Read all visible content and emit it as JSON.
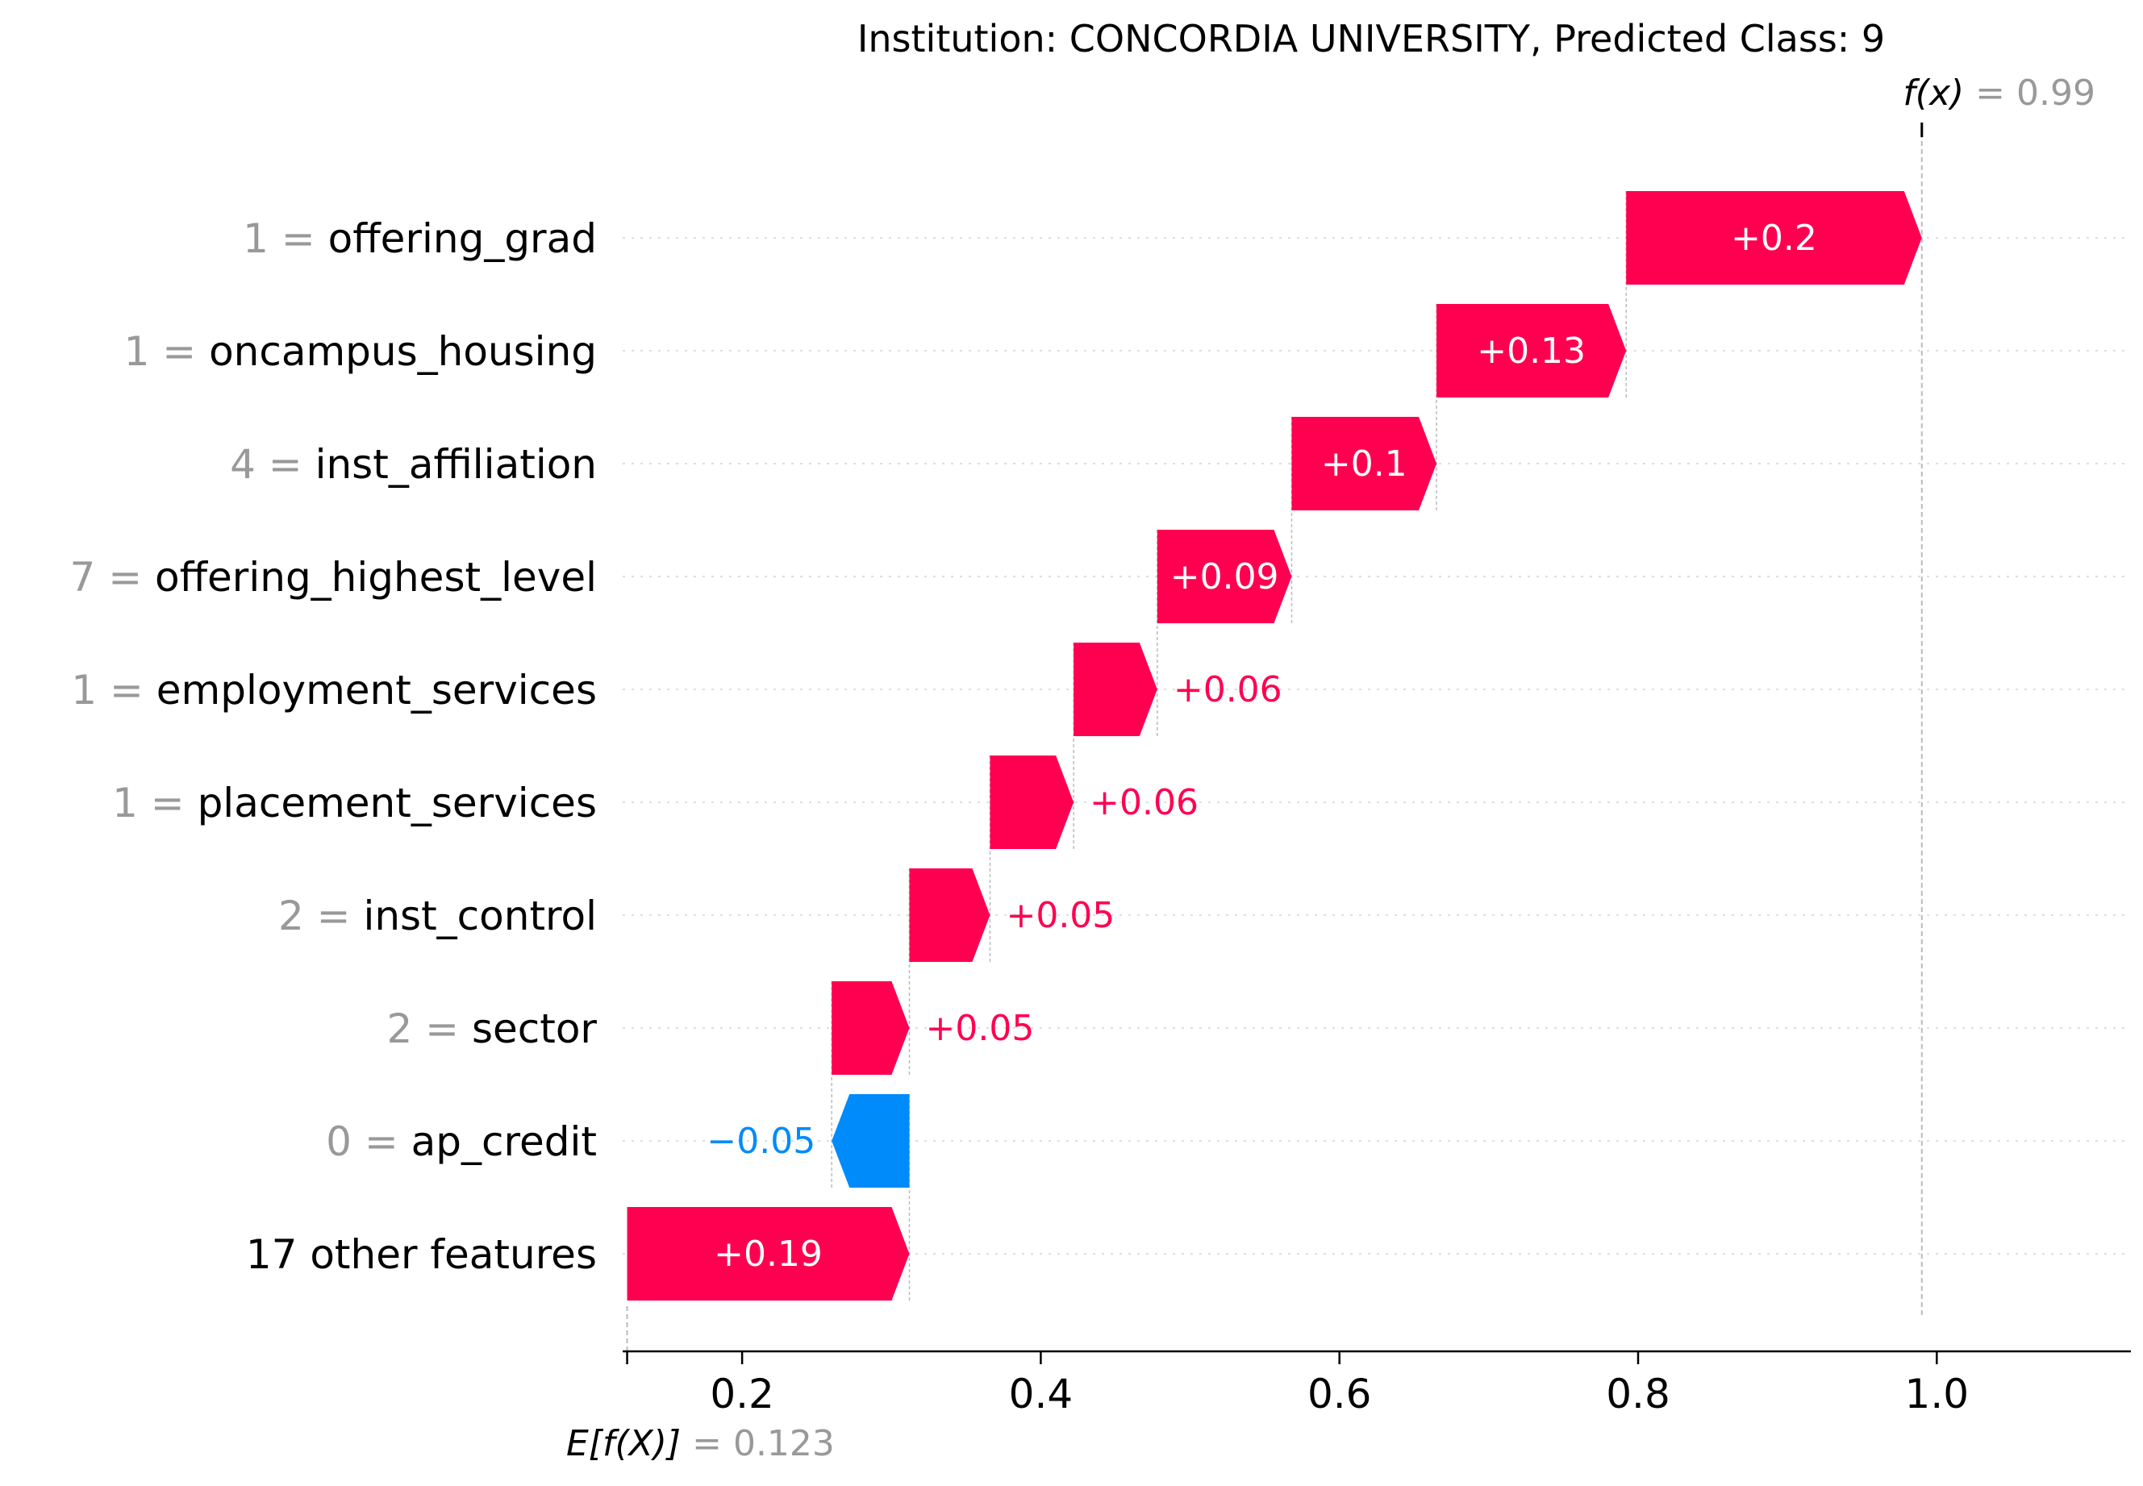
{
  "chart_data": {
    "type": "waterfall",
    "title": "Institution: CONCORDIA UNIVERSITY, Predicted Class: 9",
    "fx_label": "f(x)",
    "fx_value": 0.99,
    "fx_value_text": "= 0.99",
    "base_label": "E[f(X)]",
    "base_value": 0.123,
    "base_value_text": "= 0.123",
    "xlim": [
      0.12,
      1.13
    ],
    "xticks": [
      0.2,
      0.4,
      0.6,
      0.8,
      1.0
    ],
    "xtick_labels": [
      "0.2",
      "0.4",
      "0.6",
      "0.8",
      "1.0"
    ],
    "colors": {
      "positive": "#ff0051",
      "negative": "#008bfb",
      "label_gray": "#999999"
    },
    "features": [
      {
        "value": "1",
        "name": "offering_grad",
        "contribution": 0.2,
        "start": 0.792,
        "end": 0.99,
        "label": "+0.2"
      },
      {
        "value": "1",
        "name": "oncampus_housing",
        "contribution": 0.13,
        "start": 0.665,
        "end": 0.792,
        "label": "+0.13"
      },
      {
        "value": "4",
        "name": "inst_affiliation",
        "contribution": 0.1,
        "start": 0.568,
        "end": 0.665,
        "label": "+0.1"
      },
      {
        "value": "7",
        "name": "offering_highest_level",
        "contribution": 0.09,
        "start": 0.478,
        "end": 0.568,
        "label": "+0.09"
      },
      {
        "value": "1",
        "name": "employment_services",
        "contribution": 0.06,
        "start": 0.422,
        "end": 0.478,
        "label": "+0.06"
      },
      {
        "value": "1",
        "name": "placement_services",
        "contribution": 0.06,
        "start": 0.366,
        "end": 0.422,
        "label": "+0.06"
      },
      {
        "value": "2",
        "name": "inst_control",
        "contribution": 0.05,
        "start": 0.312,
        "end": 0.366,
        "label": "+0.05"
      },
      {
        "value": "2",
        "name": "sector",
        "contribution": 0.05,
        "start": 0.26,
        "end": 0.312,
        "label": "+0.05"
      },
      {
        "value": "0",
        "name": "ap_credit",
        "contribution": -0.05,
        "start": 0.312,
        "end": 0.26,
        "label": "−0.05"
      },
      {
        "value": "",
        "name": "17 other features",
        "contribution": 0.19,
        "start": 0.123,
        "end": 0.312,
        "label": "+0.19"
      }
    ]
  }
}
